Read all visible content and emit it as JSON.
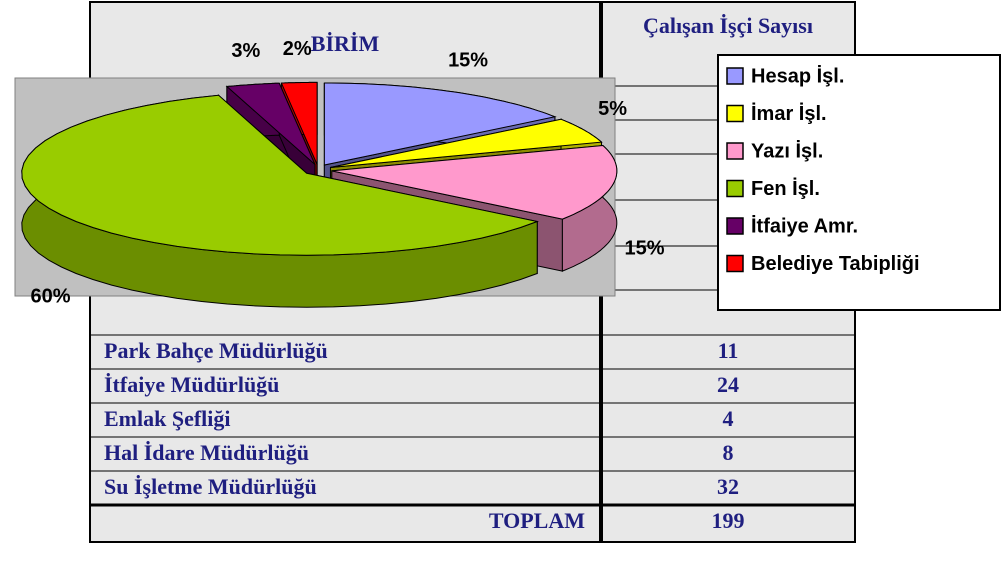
{
  "table": {
    "header": [
      "BİRİM",
      "Çalışan İşçi Sayısı"
    ],
    "rows": [
      [
        "Park Bahçe Müdürlüğü",
        "11"
      ],
      [
        "İtfaiye Müdürlüğü",
        "24"
      ],
      [
        "Emlak Şefliği",
        "4"
      ],
      [
        "Hal İdare Müdürlüğü",
        "8"
      ],
      [
        "Su İşletme Müdürlüğü",
        "32"
      ]
    ],
    "total": [
      "TOPLAM",
      "199"
    ]
  },
  "chart_data": {
    "type": "pie",
    "categories": [
      "Hesap İşl.",
      "İmar İşl.",
      "Yazı İşl.",
      "Fen İşl.",
      "İtfaiye Amr.",
      "Belediye Tabipliği"
    ],
    "values": [
      15,
      5,
      15,
      60,
      3,
      2
    ],
    "value_labels": [
      "15%",
      "5%",
      "15%",
      "60%",
      "3%",
      "2%"
    ],
    "colors": [
      "#9999ff",
      "#ffff00",
      "#ff99cc",
      "#99cc00",
      "#660066",
      "#ff0000"
    ],
    "legend": "right"
  }
}
